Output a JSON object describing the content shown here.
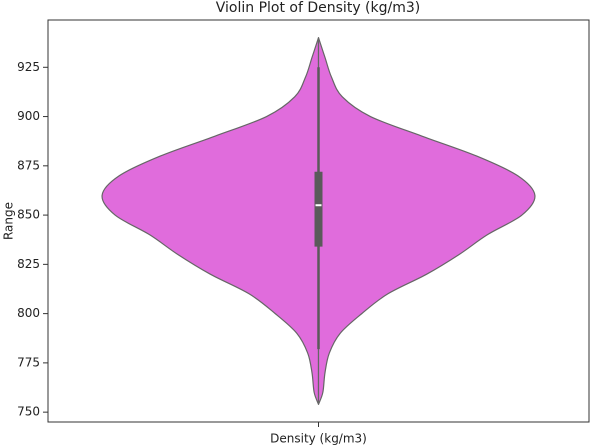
{
  "chart_data": {
    "type": "violin",
    "title": "Violin Plot of Density (kg/m3)",
    "ylabel": "Range",
    "categories": [
      "Density (kg/m3)"
    ],
    "color": "#e06cdc",
    "ylim": [
      745,
      949
    ],
    "yticks": [
      750,
      775,
      800,
      825,
      850,
      875,
      900,
      925
    ],
    "kde": {
      "y": [
        754,
        760,
        770,
        780,
        790,
        800,
        810,
        820,
        830,
        840,
        850,
        860,
        870,
        880,
        890,
        900,
        910,
        920,
        930,
        940
      ],
      "density": [
        0,
        0.02,
        0.03,
        0.05,
        0.1,
        0.2,
        0.32,
        0.5,
        0.65,
        0.78,
        0.94,
        1,
        0.92,
        0.73,
        0.48,
        0.24,
        0.11,
        0.06,
        0.03,
        0
      ]
    },
    "box": {
      "whisker_low": 782,
      "q1": 834,
      "median": 855,
      "q3": 872,
      "whisker_high": 925
    }
  }
}
